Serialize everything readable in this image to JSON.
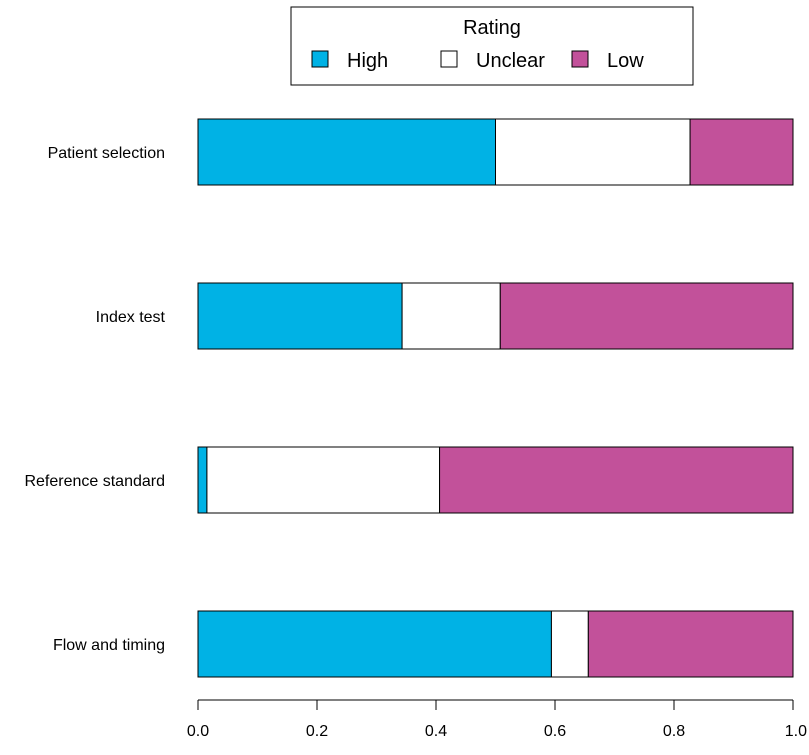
{
  "chart_data": {
    "type": "bar",
    "orientation": "horizontal",
    "stacked": true,
    "categories": [
      "Patient selection",
      "Index test",
      "Reference standard",
      "Flow and timing"
    ],
    "series": [
      {
        "name": "High",
        "color": "#00b2e5",
        "values": [
          0.5,
          0.343,
          0.015,
          0.594
        ]
      },
      {
        "name": "Unclear",
        "color": "#ffffff",
        "values": [
          0.327,
          0.165,
          0.391,
          0.062
        ]
      },
      {
        "name": "Low",
        "color": "#c2519a",
        "values": [
          0.173,
          0.492,
          0.594,
          0.344
        ]
      }
    ],
    "xlim": [
      0,
      1
    ],
    "xticks": [
      "0.0",
      "0.2",
      "0.4",
      "0.6",
      "0.8",
      "1.0"
    ],
    "xtick_values": [
      0,
      0.2,
      0.4,
      0.6,
      0.8,
      1.0
    ],
    "legend": {
      "title": "Rating",
      "position": "top"
    },
    "grid": false
  }
}
